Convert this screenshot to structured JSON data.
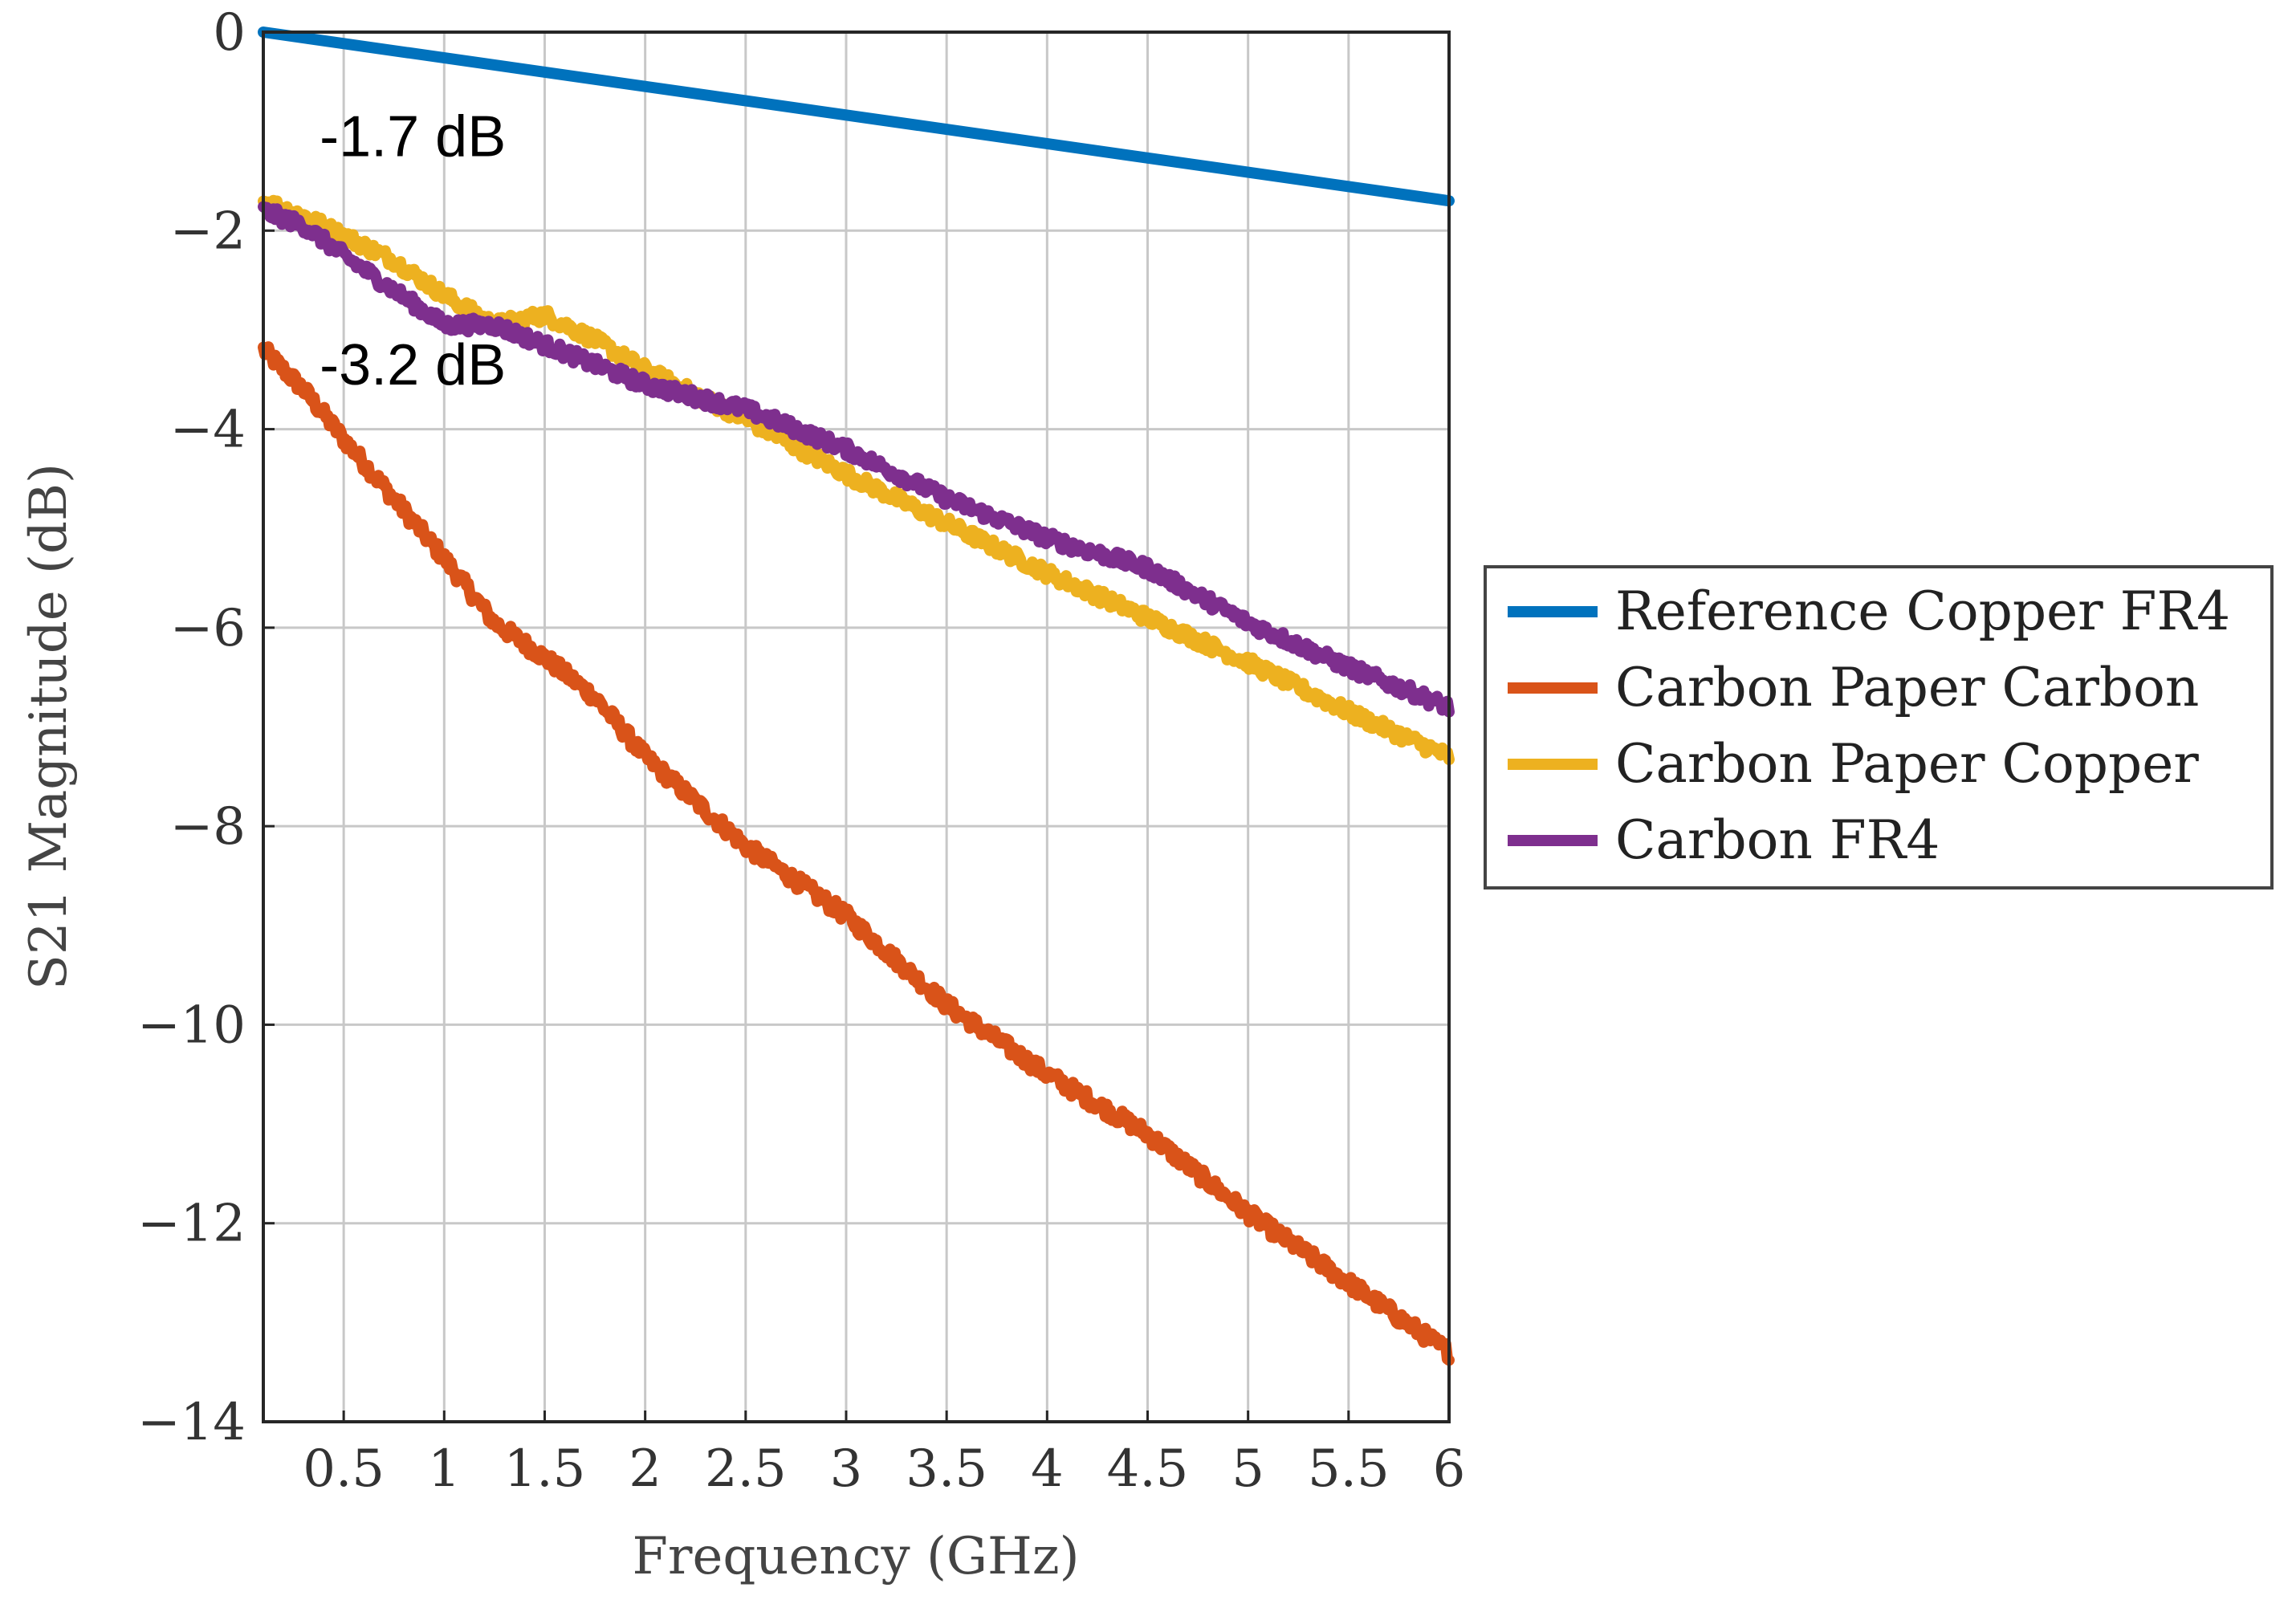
{
  "chart_data": {
    "type": "line",
    "xlabel": "Frequency (GHz)",
    "ylabel": "S21 Magnitude (dB)",
    "xlim": [
      0.1,
      6
    ],
    "ylim": [
      -14,
      0
    ],
    "grid": true,
    "x_ticks": [
      0.5,
      1,
      1.5,
      2,
      2.5,
      3,
      3.5,
      4,
      4.5,
      5,
      5.5,
      6
    ],
    "x_tick_labels": [
      "0.5",
      "1",
      "1.5",
      "2",
      "2.5",
      "3",
      "3.5",
      "4",
      "4.5",
      "5",
      "5.5",
      "6"
    ],
    "y_ticks": [
      0,
      -2,
      -4,
      -6,
      -8,
      -10,
      -12,
      -14
    ],
    "y_tick_labels": [
      "0",
      "−2",
      "−4",
      "−6",
      "−8",
      "−10",
      "−12",
      "−14"
    ],
    "legend_position": "outside-right",
    "series": [
      {
        "name": "Reference Copper FR4",
        "color": "#0072BD",
        "noise": 0,
        "x": [
          0.1,
          6
        ],
        "y": [
          0,
          -1.7
        ]
      },
      {
        "name": "Carbon Paper Carbon",
        "color": "#D95319",
        "noise": 0.08,
        "x": [
          0.1,
          0.3,
          0.5,
          0.75,
          1,
          1.25,
          1.5,
          1.75,
          2,
          2.5,
          3,
          3.5,
          4,
          4.5,
          5,
          5.5,
          6
        ],
        "y": [
          -3.2,
          -3.6,
          -4.1,
          -4.7,
          -5.3,
          -5.95,
          -6.3,
          -6.7,
          -7.3,
          -8.2,
          -8.9,
          -9.8,
          -10.5,
          -11.1,
          -11.9,
          -12.6,
          -13.3
        ]
      },
      {
        "name": "Carbon Paper Copper",
        "color": "#EDB120",
        "noise": 0.07,
        "x": [
          0.1,
          0.3,
          0.5,
          0.75,
          1,
          1.25,
          1.5,
          1.75,
          2,
          2.5,
          3,
          3.5,
          4,
          4.5,
          5,
          5.5,
          6
        ],
        "y": [
          -1.7,
          -1.85,
          -2.05,
          -2.3,
          -2.65,
          -2.95,
          -2.85,
          -3.1,
          -3.4,
          -3.9,
          -4.45,
          -4.95,
          -5.45,
          -5.9,
          -6.35,
          -6.85,
          -7.3
        ]
      },
      {
        "name": "Carbon FR4",
        "color": "#7E2F8E",
        "noise": 0.07,
        "x": [
          0.1,
          0.3,
          0.5,
          0.75,
          1,
          1.25,
          1.5,
          1.75,
          2,
          2.5,
          3,
          3.5,
          4,
          4.5,
          5,
          5.5,
          6
        ],
        "y": [
          -1.8,
          -1.95,
          -2.25,
          -2.6,
          -2.95,
          -2.95,
          -3.15,
          -3.35,
          -3.55,
          -3.8,
          -4.2,
          -4.7,
          -5.1,
          -5.4,
          -5.95,
          -6.4,
          -6.8
        ]
      }
    ],
    "annotations": [
      {
        "text": "-1.7 dB",
        "x": 0.38,
        "y": -1.25
      },
      {
        "text": "-3.2 dB",
        "x": 0.38,
        "y": -3.55
      }
    ]
  }
}
